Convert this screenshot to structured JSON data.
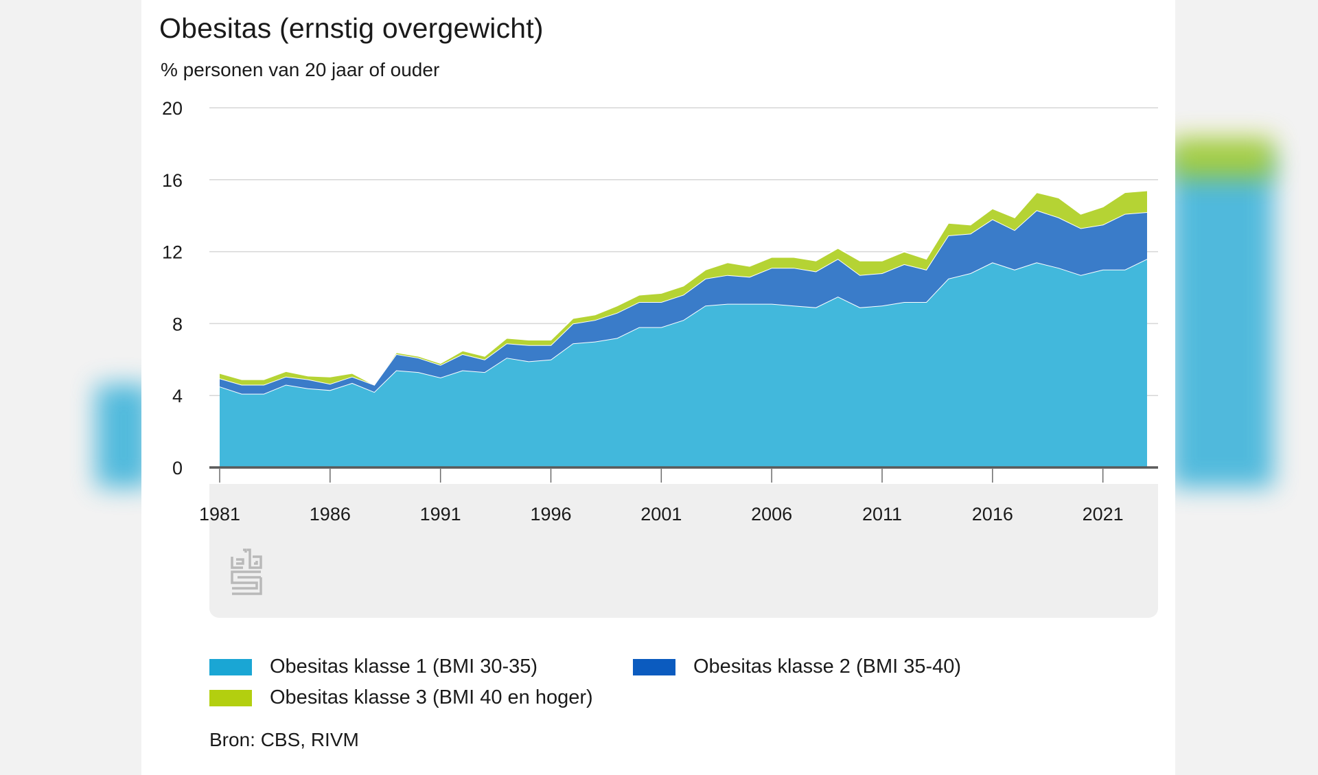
{
  "chart_data": {
    "type": "area",
    "stacked": true,
    "title": "Obesitas (ernstig overgewicht)",
    "subtitle": "% personen van 20 jaar of ouder",
    "ylim": [
      0,
      20
    ],
    "yticks": [
      "20",
      "16",
      "12",
      "8",
      "4",
      "0"
    ],
    "xticks": [
      "1981",
      "1986",
      "1991",
      "1996",
      "2001",
      "2006",
      "2011",
      "2016",
      "2021"
    ],
    "years": [
      1981,
      1982,
      1983,
      1984,
      1985,
      1986,
      1987,
      1988,
      1989,
      1990,
      1991,
      1992,
      1993,
      1994,
      1995,
      1996,
      1997,
      1998,
      1999,
      2000,
      2001,
      2002,
      2003,
      2004,
      2005,
      2006,
      2007,
      2008,
      2009,
      2010,
      2011,
      2012,
      2013,
      2014,
      2015,
      2016,
      2017,
      2018,
      2019,
      2020,
      2021,
      2022,
      2023
    ],
    "series": [
      {
        "name": "Obesitas klasse 1 (BMI 30-35)",
        "color": "#42b8dc",
        "values": [
          4.5,
          4.1,
          4.1,
          4.6,
          4.4,
          4.3,
          4.7,
          4.2,
          5.4,
          5.3,
          5.0,
          5.4,
          5.3,
          6.1,
          5.9,
          6.0,
          6.9,
          7.0,
          7.2,
          7.8,
          7.8,
          8.2,
          9.0,
          9.1,
          9.1,
          9.1,
          9.0,
          8.9,
          9.5,
          8.9,
          9.0,
          9.2,
          9.2,
          10.5,
          10.8,
          11.4,
          11.0,
          11.4,
          11.1,
          10.7,
          11.0,
          11.0,
          11.6
        ]
      },
      {
        "name": "Obesitas klasse 2 (BMI 35-40)",
        "color": "#3a7cc9",
        "values": [
          0.45,
          0.5,
          0.5,
          0.45,
          0.5,
          0.35,
          0.35,
          0.4,
          0.9,
          0.8,
          0.7,
          0.9,
          0.7,
          0.8,
          0.9,
          0.8,
          1.1,
          1.2,
          1.4,
          1.4,
          1.4,
          1.4,
          1.5,
          1.6,
          1.5,
          2.0,
          2.1,
          2.0,
          2.1,
          1.8,
          1.8,
          2.1,
          1.8,
          2.4,
          2.2,
          2.4,
          2.2,
          2.9,
          2.8,
          2.6,
          2.5,
          3.1,
          2.6
        ]
      },
      {
        "name": "Obesitas klasse 3 (BMI 40 en hoger)",
        "color": "#b5d334",
        "values": [
          0.3,
          0.3,
          0.3,
          0.3,
          0.2,
          0.4,
          0.2,
          0.0,
          0.1,
          0.1,
          0.1,
          0.2,
          0.2,
          0.3,
          0.3,
          0.3,
          0.3,
          0.3,
          0.4,
          0.4,
          0.5,
          0.5,
          0.5,
          0.7,
          0.6,
          0.6,
          0.6,
          0.6,
          0.6,
          0.8,
          0.7,
          0.7,
          0.6,
          0.7,
          0.5,
          0.6,
          0.7,
          1.0,
          1.1,
          0.8,
          1.0,
          1.2,
          1.2
        ]
      }
    ],
    "legend": [
      {
        "label": "Obesitas klasse 1 (BMI 30-35)",
        "color": "#1aa6d4"
      },
      {
        "label": "Obesitas klasse 2 (BMI 35-40)",
        "color": "#0b5bbf"
      },
      {
        "label": "Obesitas klasse 3 (BMI 40 en hoger)",
        "color": "#b3cf0f"
      }
    ],
    "source": "Bron: CBS, RIVM"
  }
}
